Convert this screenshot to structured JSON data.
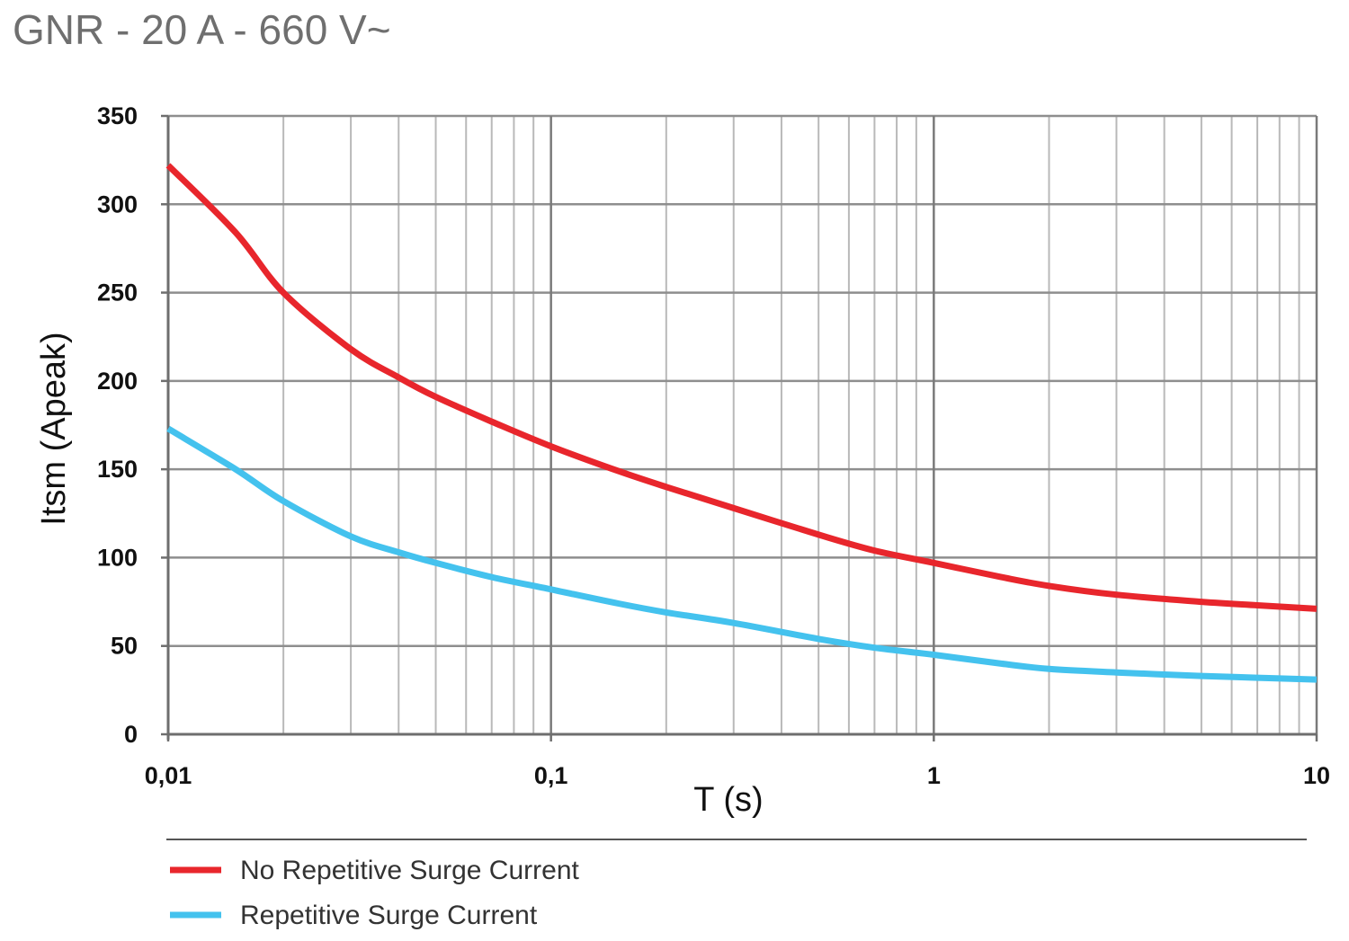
{
  "chart_data": {
    "type": "line",
    "title": "GNR - 20 A - 660 V~",
    "xlabel": "T (s)",
    "ylabel": "Itsm (Apeak)",
    "x_scale": "log",
    "xlim": [
      0.01,
      10
    ],
    "ylim": [
      0,
      350
    ],
    "x_ticks": [
      {
        "value": 0.01,
        "label": "0,01"
      },
      {
        "value": 0.1,
        "label": "0,1"
      },
      {
        "value": 1,
        "label": "1"
      },
      {
        "value": 10,
        "label": "10"
      }
    ],
    "y_ticks": [
      {
        "value": 0,
        "label": "0"
      },
      {
        "value": 50,
        "label": "50"
      },
      {
        "value": 100,
        "label": "100"
      },
      {
        "value": 150,
        "label": "150"
      },
      {
        "value": 200,
        "label": "200"
      },
      {
        "value": 250,
        "label": "250"
      },
      {
        "value": 300,
        "label": "300"
      },
      {
        "value": 350,
        "label": "350"
      }
    ],
    "grid": true,
    "legend_position": "bottom",
    "series": [
      {
        "name": "No Repetitive Surge Current",
        "color": "#e8262c",
        "x": [
          0.01,
          0.015,
          0.02,
          0.03,
          0.04,
          0.05,
          0.07,
          0.1,
          0.15,
          0.2,
          0.3,
          0.5,
          0.7,
          1,
          1.5,
          2,
          3,
          5,
          7,
          10
        ],
        "y": [
          322,
          284,
          250,
          218,
          202,
          191,
          177,
          163,
          149,
          140,
          128,
          113,
          104,
          97,
          89,
          84,
          79,
          75,
          73,
          71
        ]
      },
      {
        "name": "Repetitive Surge Current",
        "color": "#44c2ee",
        "x": [
          0.01,
          0.015,
          0.02,
          0.03,
          0.04,
          0.05,
          0.07,
          0.1,
          0.15,
          0.2,
          0.3,
          0.5,
          0.7,
          1,
          1.5,
          2,
          3,
          5,
          7,
          10
        ],
        "y": [
          173,
          150,
          132,
          112,
          103,
          97,
          89,
          82,
          74,
          69,
          63,
          54,
          49,
          45,
          40,
          37,
          35,
          33,
          32,
          31
        ]
      }
    ]
  }
}
